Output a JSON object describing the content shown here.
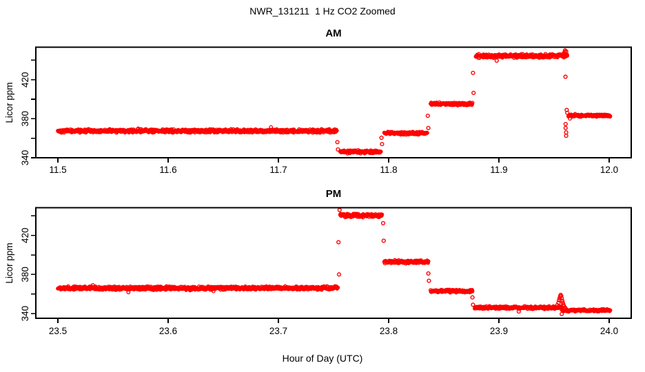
{
  "page": {
    "main_title": "NWR_131211  1 Hz CO2 Zoomed",
    "x_axis_label": "Hour of Day (UTC)",
    "background_color": "#FFFFFF",
    "axis_color": "#000000",
    "point_color": "#FF0000"
  },
  "chart_data": [
    {
      "type": "scatter",
      "title": "AM",
      "ylabel": "Licor ppm",
      "xlabel": "",
      "marker": "open-circle",
      "color": "#FF0000",
      "grid": false,
      "xlim": [
        11.48,
        12.02
      ],
      "ylim": [
        340,
        453.3
      ],
      "xticks": [
        11.5,
        11.6,
        11.7,
        11.8,
        11.9,
        12.0
      ],
      "xtick_labels": [
        "11.5",
        "11.6",
        "11.7",
        "11.8",
        "11.9",
        "12.0"
      ],
      "yticks": [
        340,
        360,
        380,
        400,
        420,
        440
      ],
      "ytick_labeled": [
        {
          "value": 340,
          "label": "340"
        },
        {
          "value": 380,
          "label": "380"
        },
        {
          "value": 420,
          "label": "420"
        }
      ],
      "sample_rate_hz": 1,
      "segments": [
        {
          "t_start": 11.5,
          "t_end": 11.753,
          "ppm": 367.5,
          "noise": 2.0
        },
        {
          "t_start": 11.756,
          "t_end": 11.793,
          "ppm": 346.0,
          "noise": 1.9
        },
        {
          "t_start": 11.796,
          "t_end": 11.835,
          "ppm": 365.2,
          "noise": 1.7
        },
        {
          "t_start": 11.838,
          "t_end": 11.876,
          "ppm": 395.2,
          "noise": 1.7
        },
        {
          "t_start": 11.879,
          "t_end": 11.962,
          "ppm": 444.3,
          "noise": 2.2
        },
        {
          "t_start": 11.963,
          "t_end": 12.001,
          "ppm": 383.2,
          "noise": 1.5
        }
      ],
      "outliers": [
        [
          11.7535,
          356.0
        ],
        [
          11.754,
          348.5
        ],
        [
          11.7935,
          360.5
        ],
        [
          11.794,
          354.0
        ],
        [
          11.8355,
          383.0
        ],
        [
          11.836,
          370.5
        ],
        [
          11.8765,
          427.0
        ],
        [
          11.877,
          406.5
        ],
        [
          11.898,
          439.5
        ],
        [
          11.9595,
          448.5
        ],
        [
          11.96,
          450.0
        ],
        [
          11.961,
          449.0
        ],
        [
          11.9604,
          423.0
        ],
        [
          11.9605,
          374.5
        ],
        [
          11.9605,
          370.5
        ],
        [
          11.961,
          366.0
        ],
        [
          11.961,
          362.5
        ],
        [
          11.9615,
          389.0
        ],
        [
          11.962,
          386.0
        ]
      ]
    },
    {
      "type": "scatter",
      "title": "PM",
      "ylabel": "Licor ppm",
      "xlabel": "Hour of Day (UTC)",
      "marker": "open-circle",
      "color": "#FF0000",
      "grid": false,
      "xlim": [
        23.48,
        24.02
      ],
      "ylim": [
        335.1,
        448.4
      ],
      "xticks": [
        23.5,
        23.6,
        23.7,
        23.8,
        23.9,
        24.0
      ],
      "xtick_labels": [
        "23.5",
        "23.6",
        "23.7",
        "23.8",
        "23.9",
        "24.0"
      ],
      "yticks": [
        340,
        360,
        380,
        400,
        420,
        440
      ],
      "ytick_labeled": [
        {
          "value": 340,
          "label": "340"
        },
        {
          "value": 380,
          "label": "380"
        },
        {
          "value": 420,
          "label": "420"
        }
      ],
      "sample_rate_hz": 1,
      "segments": [
        {
          "t_start": 23.5,
          "t_end": 23.754,
          "ppm": 366.0,
          "noise": 2.1
        },
        {
          "t_start": 23.756,
          "t_end": 23.794,
          "ppm": 440.5,
          "noise": 2.3
        },
        {
          "t_start": 23.796,
          "t_end": 23.836,
          "ppm": 393.0,
          "noise": 1.9
        },
        {
          "t_start": 23.838,
          "t_end": 23.876,
          "ppm": 363.0,
          "noise": 1.7
        },
        {
          "t_start": 23.878,
          "t_end": 23.957,
          "ppm": 346.0,
          "noise": 1.7
        },
        {
          "t_start": 23.957,
          "t_end": 24.001,
          "ppm": 343.2,
          "noise": 1.5
        }
      ],
      "outliers": [
        [
          23.7545,
          413.0
        ],
        [
          23.755,
          380.0
        ],
        [
          23.7555,
          446.0
        ],
        [
          23.795,
          432.5
        ],
        [
          23.7955,
          414.5
        ],
        [
          23.836,
          381.0
        ],
        [
          23.8365,
          373.5
        ],
        [
          23.876,
          356.5
        ],
        [
          23.8765,
          349.0
        ],
        [
          23.918,
          342.0
        ],
        [
          23.953,
          348.5
        ],
        [
          23.954,
          351.0
        ],
        [
          23.9545,
          353.5
        ],
        [
          23.955,
          355.5
        ],
        [
          23.9555,
          357.5
        ],
        [
          23.956,
          359.0
        ],
        [
          23.9565,
          358.0
        ],
        [
          23.957,
          355.5
        ],
        [
          23.9575,
          353.0
        ],
        [
          23.958,
          351.0
        ],
        [
          23.9585,
          349.0
        ],
        [
          23.959,
          347.5
        ],
        [
          23.96,
          346.0
        ],
        [
          23.957,
          339.5
        ]
      ]
    }
  ]
}
